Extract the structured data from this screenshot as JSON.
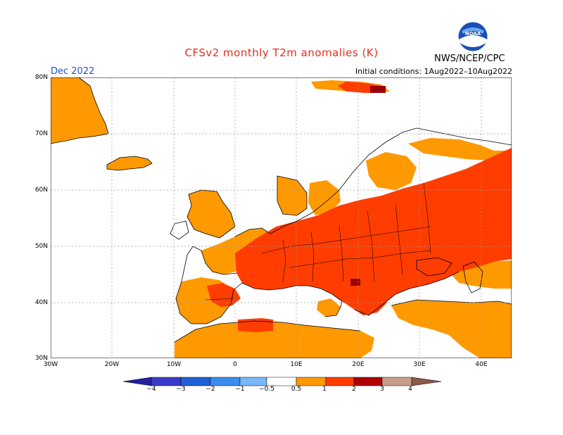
{
  "header": {
    "title": "CFSv2 monthly T2m anomalies (K)",
    "month": "Dec 2022",
    "init": "Initial conditions: 1Aug2022–10Aug2022",
    "agency": "NWS/NCEP/CPC",
    "logo_text": "NOAA"
  },
  "colors": {
    "title": "#e03020",
    "warm1": "#ff9900",
    "warm2": "#ff3d00",
    "warm3": "#9b0000",
    "land_outline": "#000000",
    "grid": "#9a9a9a"
  },
  "axes": {
    "lat_labels": [
      "80N",
      "70N",
      "60N",
      "50N",
      "40N",
      "30N"
    ],
    "lon_labels": [
      "30W",
      "20W",
      "10W",
      "0",
      "10E",
      "20E",
      "30E",
      "40E"
    ]
  },
  "legend": {
    "labels": [
      "−4",
      "−3",
      "−2",
      "−1",
      "−0.5",
      "0.5",
      "1",
      "2",
      "3",
      "4"
    ],
    "colors": [
      "#2222a0",
      "#3a3ac8",
      "#1f5fd6",
      "#3c8cf0",
      "#78b8f8",
      "#ffffff",
      "#ff9900",
      "#ff3d00",
      "#b00000",
      "#c89c8c",
      "#8c5848"
    ]
  }
}
